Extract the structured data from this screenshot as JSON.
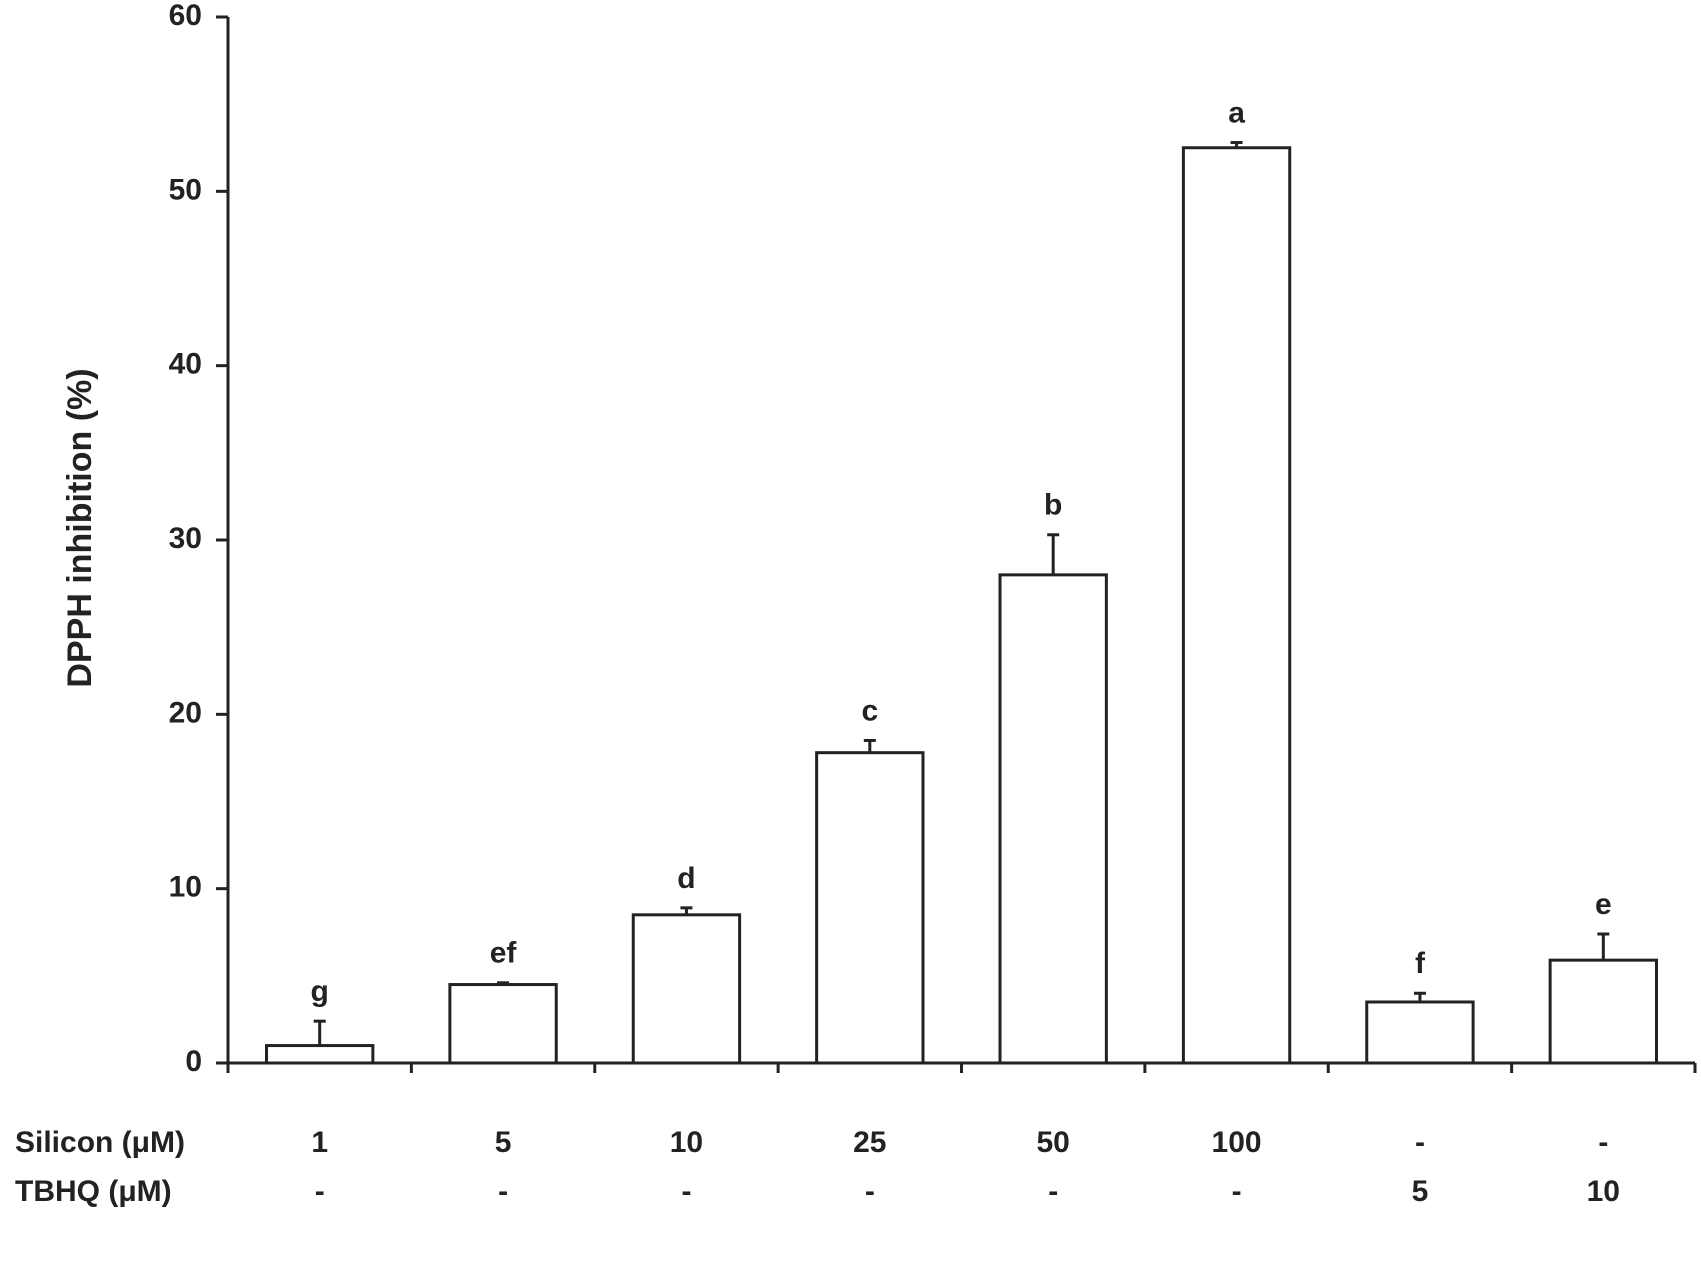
{
  "chart_data": {
    "type": "bar",
    "y_label": "DPPH inhibition (%)",
    "category_row_titles": [
      "Silicon (μM)",
      "TBHQ (μM)"
    ],
    "categories": [
      [
        "1",
        "-"
      ],
      [
        "5",
        "-"
      ],
      [
        "10",
        "-"
      ],
      [
        "25",
        "-"
      ],
      [
        "50",
        "-"
      ],
      [
        "100",
        "-"
      ],
      [
        "-",
        "5"
      ],
      [
        "-",
        "10"
      ]
    ],
    "values": [
      1.0,
      4.5,
      8.5,
      17.8,
      28.0,
      52.5,
      3.5,
      5.9
    ],
    "errors": [
      1.4,
      0.1,
      0.4,
      0.7,
      2.3,
      0.3,
      0.5,
      1.5
    ],
    "annotations": [
      "g",
      "ef",
      "d",
      "c",
      "b",
      "a",
      "f",
      "e"
    ],
    "color": "#ffffff",
    "ylim": [
      0,
      60
    ],
    "yticks": [
      0,
      10,
      20,
      30,
      40,
      50,
      60
    ],
    "grid": false
  }
}
